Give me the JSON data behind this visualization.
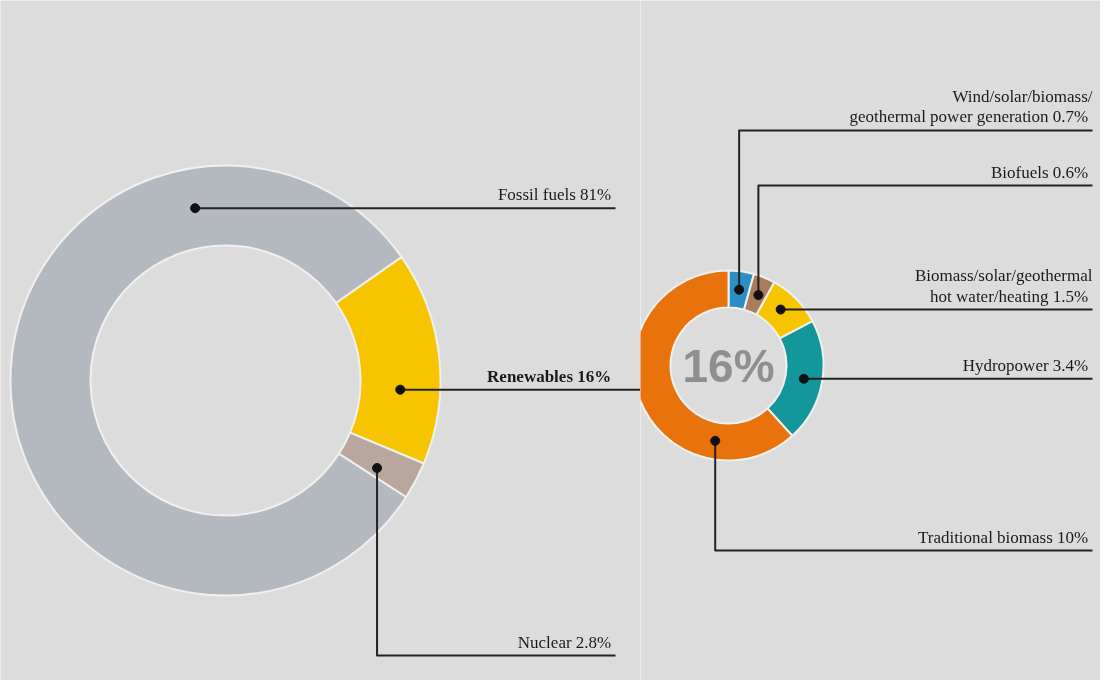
{
  "chart_data": [
    {
      "type": "donut",
      "categories": [
        "Fossil fuels",
        "Renewables",
        "Nuclear"
      ],
      "values": [
        81,
        16,
        2.8
      ],
      "value_labels": [
        "81%",
        "16%",
        "2.8%"
      ],
      "colors": [
        "#b4b9bf",
        "#f7c500",
        "#b9a69d"
      ]
    },
    {
      "type": "donut",
      "categories": [
        "Wind/solar/biomass/\ngeothermal power generation",
        "Biofuels",
        "Biomass/solar/geothermal\nhot water/heating",
        "Hydropower",
        "Traditional biomass"
      ],
      "values": [
        0.7,
        0.6,
        1.5,
        3.4,
        10
      ],
      "value_labels": [
        "0.7%",
        "0.6%",
        "1.5%",
        "3.4%",
        "10%"
      ],
      "colors": [
        "#2b8fc3",
        "#a87c5c",
        "#f7c500",
        "#13979b",
        "#e8720c"
      ],
      "annotations": [
        "16%"
      ]
    }
  ]
}
